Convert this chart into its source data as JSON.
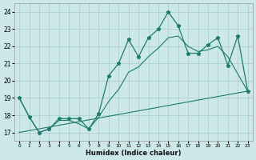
{
  "xlabel": "Humidex (Indice chaleur)",
  "xlim": [
    -0.5,
    23.5
  ],
  "ylim": [
    16.5,
    24.5
  ],
  "yticks": [
    17,
    18,
    19,
    20,
    21,
    22,
    23,
    24
  ],
  "xticks": [
    0,
    1,
    2,
    3,
    4,
    5,
    6,
    7,
    8,
    9,
    10,
    11,
    12,
    13,
    14,
    15,
    16,
    17,
    18,
    19,
    20,
    21,
    22,
    23
  ],
  "bg_color": "#cce8e8",
  "grid_color": "#aacccc",
  "line_color": "#1e7b6e",
  "main_x": [
    0,
    1,
    2,
    3,
    4,
    5,
    6,
    7,
    8,
    9,
    10,
    11,
    12,
    13,
    14,
    15,
    16,
    17,
    18,
    19,
    20,
    21,
    22,
    23
  ],
  "main_y": [
    19.0,
    17.9,
    17.0,
    17.2,
    17.8,
    17.8,
    17.8,
    17.2,
    18.1,
    20.3,
    21.0,
    22.4,
    21.4,
    22.5,
    23.0,
    24.0,
    23.2,
    21.6,
    21.6,
    22.1,
    22.5,
    20.9,
    22.6,
    19.4
  ],
  "smooth_x": [
    0,
    1,
    2,
    3,
    4,
    5,
    6,
    7,
    8,
    9,
    10,
    11,
    12,
    13,
    14,
    15,
    16,
    17,
    18,
    19,
    20,
    21,
    22,
    23
  ],
  "smooth_y": [
    19.0,
    17.9,
    17.0,
    17.2,
    17.7,
    17.7,
    17.5,
    17.2,
    17.9,
    18.8,
    19.5,
    20.5,
    20.8,
    21.4,
    21.9,
    22.5,
    22.6,
    22.0,
    21.7,
    21.8,
    22.0,
    21.4,
    20.4,
    19.4
  ],
  "trend_x": [
    0,
    23
  ],
  "trend_y": [
    17.0,
    19.4
  ]
}
